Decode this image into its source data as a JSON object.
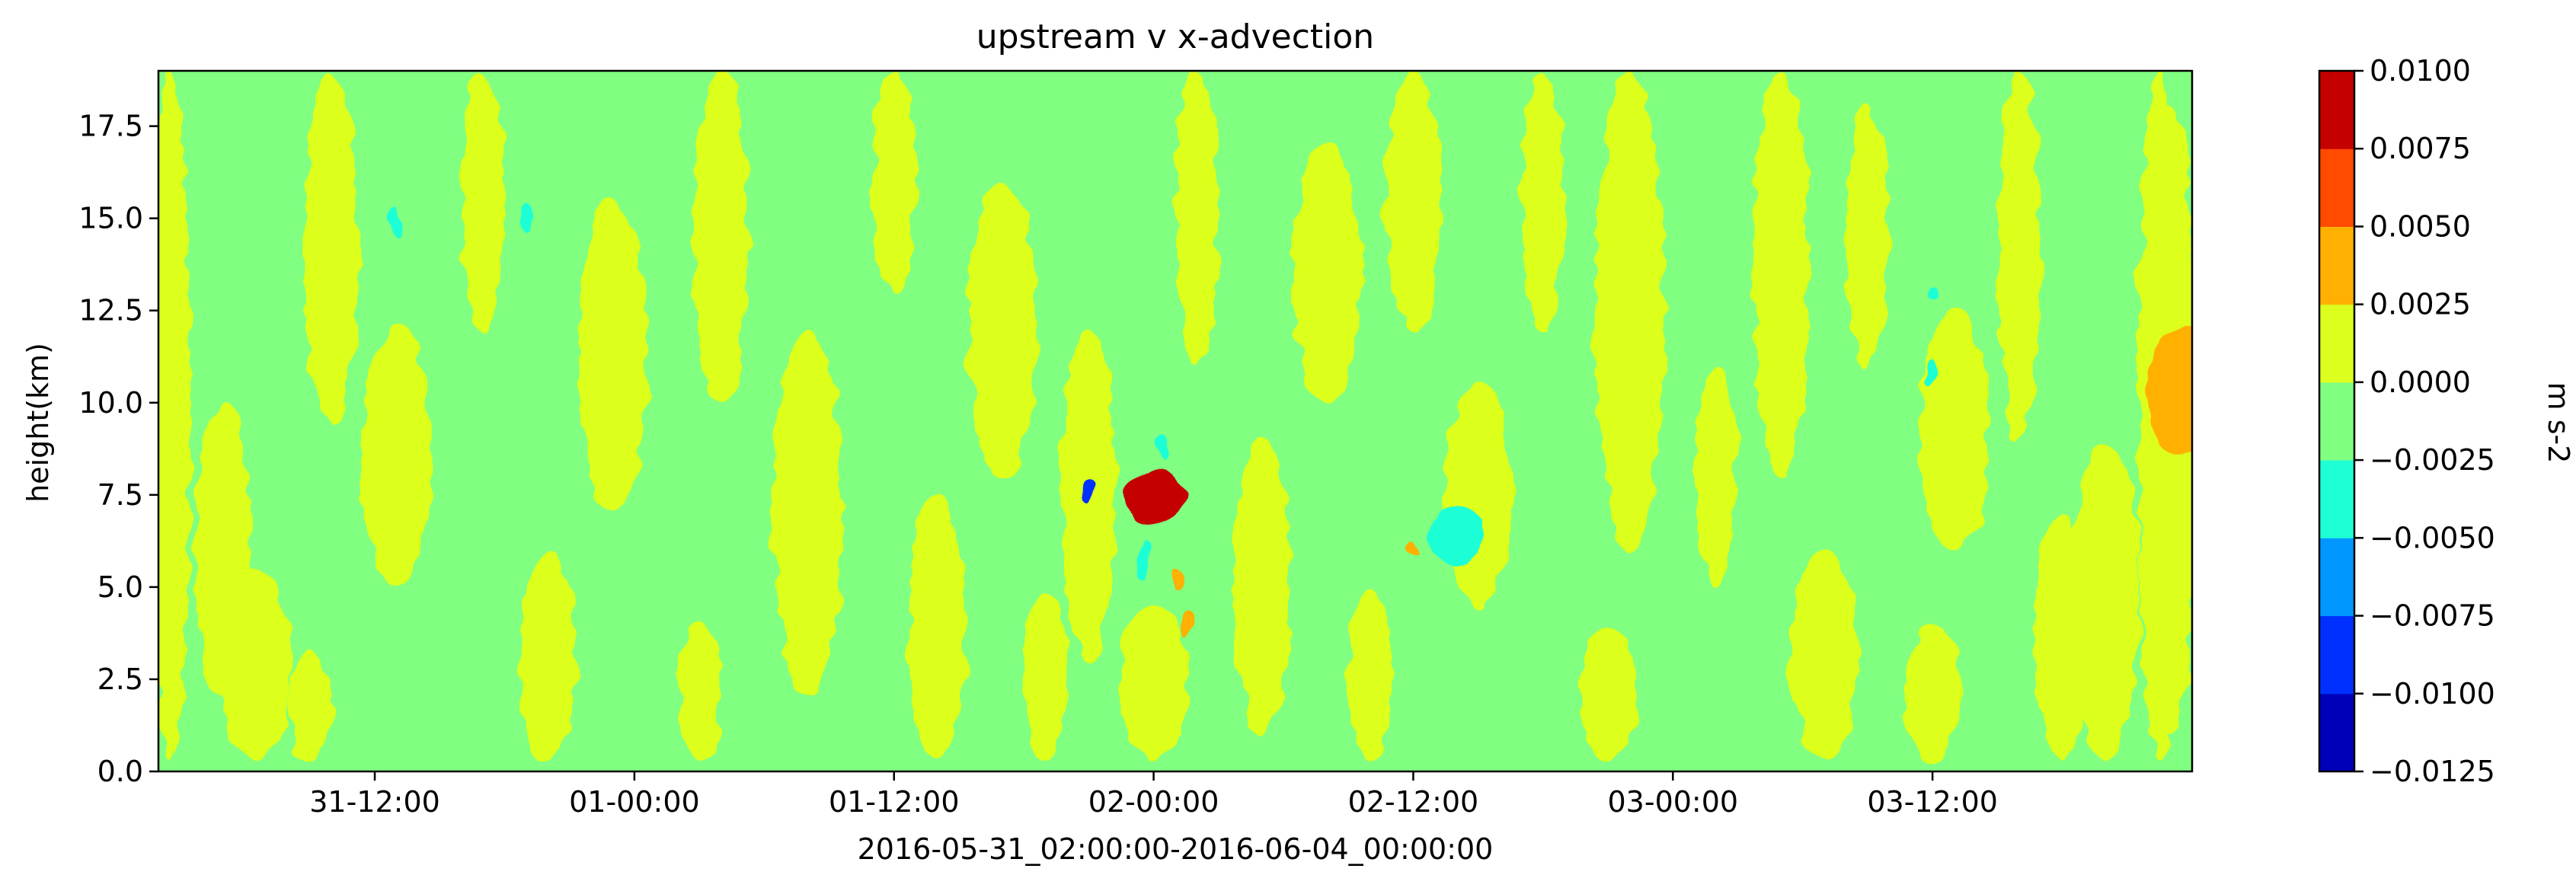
{
  "chart_data": {
    "type": "heatmap",
    "subtype": "filled-contour",
    "title": "upstream v x-advection",
    "xlabel": "2016-05-31_02:00:00-2016-06-04_00:00:00",
    "ylabel": "height(km)",
    "x_axis": {
      "type": "date",
      "range": [
        "2016-05-31 02:00",
        "2016-06-04 00:00"
      ],
      "ticks": [
        "31-12:00",
        "01-00:00",
        "01-12:00",
        "02-00:00",
        "02-12:00",
        "03-00:00",
        "03-12:00"
      ],
      "tick_times": [
        "2016-05-31 12:00",
        "2016-06-01 00:00",
        "2016-06-01 12:00",
        "2016-06-02 00:00",
        "2016-06-02 12:00",
        "2016-06-03 00:00",
        "2016-06-03 12:00"
      ]
    },
    "y_axis": {
      "range": [
        0,
        19
      ],
      "ticks": [
        "0.0",
        "2.5",
        "5.0",
        "7.5",
        "10.0",
        "12.5",
        "15.0",
        "17.5"
      ],
      "tick_values": [
        0,
        2.5,
        5,
        7.5,
        10,
        12.5,
        15,
        17.5
      ]
    },
    "grid": false,
    "colorbar": {
      "label": "m s-2",
      "placement": "right",
      "ticks": [
        "0.0100",
        "0.0075",
        "0.0050",
        "0.0025",
        "0.0000",
        "−0.0025",
        "−0.0050",
        "−0.0075",
        "−0.0100",
        "−0.0125"
      ],
      "levels": [
        -0.0125,
        -0.01,
        -0.0075,
        -0.005,
        -0.0025,
        0,
        0.0025,
        0.005,
        0.0075,
        0.01
      ],
      "colors": [
        "#0000b8",
        "#0030ff",
        "#0098ff",
        "#1effd6",
        "#80ff80",
        "#dcff1e",
        "#ffb000",
        "#ff4a00",
        "#c40000"
      ]
    },
    "background_band": "-0.0025 to 0.0000",
    "features": [
      {
        "t": "2016-05-31 02:30",
        "z0": 0.3,
        "z1": 19.0,
        "band": "0.0000 to 0.0025"
      },
      {
        "t": "2016-05-31 05:00",
        "z0": 2.0,
        "z1": 10.0,
        "band": "0.0000 to 0.0025"
      },
      {
        "t": "2016-05-31 06:30",
        "z0": 0.3,
        "z1": 5.5,
        "band": "0.0000 to 0.0025"
      },
      {
        "t": "2016-05-31 09:00",
        "z0": 0.3,
        "z1": 3.2,
        "band": "0.0000 to 0.0025"
      },
      {
        "t": "2016-05-31 10:00",
        "z0": 9.5,
        "z1": 19.0,
        "band": "0.0000 to 0.0025"
      },
      {
        "t": "2016-05-31 13:00",
        "z0": 5.0,
        "z1": 12.0,
        "band": "0.0000 to 0.0025"
      },
      {
        "t": "2016-05-31 17:00",
        "z0": 12.0,
        "z1": 19.0,
        "band": "0.0000 to 0.0025"
      },
      {
        "t": "2016-05-31 20:00",
        "z0": 0.3,
        "z1": 6.0,
        "band": "0.0000 to 0.0025"
      },
      {
        "t": "2016-05-31 23:00",
        "z0": 7.0,
        "z1": 15.5,
        "band": "0.0000 to 0.0025"
      },
      {
        "t": "2016-06-01 03:00",
        "z0": 0.3,
        "z1": 4.0,
        "band": "0.0000 to 0.0025"
      },
      {
        "t": "2016-06-01 04:00",
        "z0": 10.0,
        "z1": 19.0,
        "band": "0.0000 to 0.0025"
      },
      {
        "t": "2016-06-01 08:00",
        "z0": 2.0,
        "z1": 12.0,
        "band": "0.0000 to 0.0025"
      },
      {
        "t": "2016-06-01 12:00",
        "z0": 13.0,
        "z1": 19.0,
        "band": "0.0000 to 0.0025"
      },
      {
        "t": "2016-06-01 14:00",
        "z0": 0.3,
        "z1": 7.5,
        "band": "0.0000 to 0.0025"
      },
      {
        "t": "2016-06-01 17:00",
        "z0": 8.0,
        "z1": 16.0,
        "band": "0.0000 to 0.0025"
      },
      {
        "t": "2016-06-01 19:00",
        "z0": 0.3,
        "z1": 5.0,
        "band": "0.0000 to 0.0025"
      },
      {
        "t": "2016-06-01 21:00",
        "z0": 3.0,
        "z1": 12.0,
        "band": "0.0000 to 0.0025"
      },
      {
        "t": "2016-06-02 00:00",
        "z0": 0.3,
        "z1": 4.5,
        "band": "0.0000 to 0.0025"
      },
      {
        "t": "2016-06-02 02:00",
        "z0": 11.0,
        "z1": 19.0,
        "band": "0.0000 to 0.0025"
      },
      {
        "t": "2016-06-02 05:00",
        "z0": 1.0,
        "z1": 9.0,
        "band": "0.0000 to 0.0025"
      },
      {
        "t": "2016-06-02 08:00",
        "z0": 10.0,
        "z1": 17.0,
        "band": "0.0000 to 0.0025"
      },
      {
        "t": "2016-06-02 10:00",
        "z0": 0.3,
        "z1": 5.0,
        "band": "0.0000 to 0.0025"
      },
      {
        "t": "2016-06-02 12:00",
        "z0": 12.0,
        "z1": 19.0,
        "band": "0.0000 to 0.0025"
      },
      {
        "t": "2016-06-02 15:00",
        "z0": 4.5,
        "z1": 10.5,
        "band": "0.0000 to 0.0025"
      },
      {
        "t": "2016-06-02 18:00",
        "z0": 12.0,
        "z1": 19.0,
        "band": "0.0000 to 0.0025"
      },
      {
        "t": "2016-06-02 21:00",
        "z0": 0.3,
        "z1": 4.0,
        "band": "0.0000 to 0.0025"
      },
      {
        "t": "2016-06-02 22:00",
        "z0": 6.0,
        "z1": 19.0,
        "band": "0.0000 to 0.0025"
      },
      {
        "t": "2016-06-03 02:00",
        "z0": 5.0,
        "z1": 11.0,
        "band": "0.0000 to 0.0025"
      },
      {
        "t": "2016-06-03 05:00",
        "z0": 8.0,
        "z1": 19.0,
        "band": "0.0000 to 0.0025"
      },
      {
        "t": "2016-06-03 07:00",
        "z0": 0.3,
        "z1": 6.0,
        "band": "0.0000 to 0.0025"
      },
      {
        "t": "2016-06-03 09:00",
        "z0": 11.0,
        "z1": 18.0,
        "band": "0.0000 to 0.0025"
      },
      {
        "t": "2016-06-03 12:00",
        "z0": 0.3,
        "z1": 4.0,
        "band": "0.0000 to 0.0025"
      },
      {
        "t": "2016-06-03 13:00",
        "z0": 6.0,
        "z1": 12.5,
        "band": "0.0000 to 0.0025"
      },
      {
        "t": "2016-06-03 16:00",
        "z0": 9.0,
        "z1": 19.0,
        "band": "0.0000 to 0.0025"
      },
      {
        "t": "2016-06-03 18:00",
        "z0": 0.3,
        "z1": 7.0,
        "band": "0.0000 to 0.0025"
      },
      {
        "t": "2016-06-03 20:00",
        "z0": 0.3,
        "z1": 9.0,
        "band": "0.0000 to 0.0025"
      },
      {
        "t": "2016-06-03 22:30",
        "z0": 0.3,
        "z1": 19.0,
        "band": "0.0000 to 0.0025"
      },
      {
        "t": "2016-06-03 23:00",
        "z0": 1.0,
        "z1": 18.0,
        "band": "0.0000 to 0.0025"
      },
      {
        "t": "2016-05-31 13:00",
        "z0": 14.5,
        "z1": 15.4,
        "band": "-0.0050 to -0.0025"
      },
      {
        "t": "2016-05-31 19:00",
        "z0": 14.6,
        "z1": 15.4,
        "band": "-0.0050 to -0.0025"
      },
      {
        "t": "2016-06-01 21:00",
        "z0": 7.3,
        "z1": 8.0,
        "band": "-0.0100 to -0.0075"
      },
      {
        "t": "2016-06-01 23:30",
        "z0": 5.2,
        "z1": 6.2,
        "band": "-0.0050 to -0.0025"
      },
      {
        "t": "2016-06-02 00:30",
        "z0": 8.4,
        "z1": 9.2,
        "band": "-0.0050 to -0.0025"
      },
      {
        "t": "2016-06-02 14:00",
        "z0": 5.6,
        "z1": 7.2,
        "band": "-0.0050 to -0.0025"
      },
      {
        "t": "2016-06-03 12:00",
        "z0": 12.8,
        "z1": 13.2,
        "band": "-0.0050 to -0.0025"
      },
      {
        "t": "2016-06-03 12:00",
        "z0": 10.4,
        "z1": 11.2,
        "band": "-0.0050 to -0.0025"
      },
      {
        "t": "2016-06-02 00:00",
        "z0": 6.8,
        "z1": 8.2,
        "band": "0.0075 to 0.0100"
      },
      {
        "t": "2016-06-02 01:30",
        "z0": 3.6,
        "z1": 4.4,
        "band": "0.0025 to 0.0050"
      },
      {
        "t": "2016-06-02 01:00",
        "z0": 5.0,
        "z1": 5.6,
        "band": "0.0025 to 0.0050"
      },
      {
        "t": "2016-06-02 12:00",
        "z0": 5.8,
        "z1": 6.2,
        "band": "0.0025 to 0.0050"
      },
      {
        "t": "2016-06-03 23:30",
        "z0": 8.5,
        "z1": 12.0,
        "band": "0.0025 to 0.0050"
      }
    ]
  }
}
